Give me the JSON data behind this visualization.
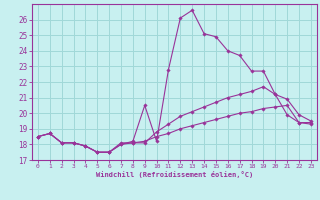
{
  "bg_color": "#c8f0f0",
  "grid_color": "#a0d8d8",
  "line_color": "#993399",
  "marker_color": "#993399",
  "xlabel": "Windchill (Refroidissement éolien,°C)",
  "xlabel_color": "#993399",
  "tick_color": "#993399",
  "xlim": [
    -0.5,
    23.5
  ],
  "ylim": [
    17,
    27
  ],
  "yticks": [
    17,
    18,
    19,
    20,
    21,
    22,
    23,
    24,
    25,
    26
  ],
  "xticks": [
    0,
    1,
    2,
    3,
    4,
    5,
    6,
    7,
    8,
    9,
    10,
    11,
    12,
    13,
    14,
    15,
    16,
    17,
    18,
    19,
    20,
    21,
    22,
    23
  ],
  "series": [
    {
      "x": [
        0,
        1,
        2,
        3,
        4,
        5,
        6,
        7,
        8,
        9,
        10,
        11,
        12,
        13,
        14,
        15,
        16,
        17,
        18,
        19,
        20,
        21,
        22,
        23
      ],
      "y": [
        18.5,
        18.7,
        18.1,
        18.1,
        17.9,
        17.5,
        17.5,
        18.0,
        18.2,
        20.5,
        18.2,
        22.8,
        26.1,
        26.6,
        25.1,
        24.9,
        24.0,
        23.7,
        22.7,
        22.7,
        21.2,
        19.9,
        19.4,
        19.4
      ]
    },
    {
      "x": [
        0,
        1,
        2,
        3,
        4,
        5,
        6,
        7,
        8,
        9,
        10,
        11,
        12,
        13,
        14,
        15,
        16,
        17,
        18,
        19,
        20,
        21,
        22,
        23
      ],
      "y": [
        18.5,
        18.7,
        18.1,
        18.1,
        17.9,
        17.5,
        17.5,
        18.1,
        18.1,
        18.1,
        18.8,
        19.3,
        19.8,
        20.1,
        20.4,
        20.7,
        21.0,
        21.2,
        21.4,
        21.7,
        21.2,
        20.9,
        19.9,
        19.5
      ]
    },
    {
      "x": [
        0,
        1,
        2,
        3,
        4,
        5,
        6,
        7,
        8,
        9,
        10,
        11,
        12,
        13,
        14,
        15,
        16,
        17,
        18,
        19,
        20,
        21,
        22,
        23
      ],
      "y": [
        18.5,
        18.7,
        18.1,
        18.1,
        17.9,
        17.5,
        17.5,
        18.0,
        18.1,
        18.2,
        18.5,
        18.7,
        19.0,
        19.2,
        19.4,
        19.6,
        19.8,
        20.0,
        20.1,
        20.3,
        20.4,
        20.5,
        19.4,
        19.3
      ]
    }
  ]
}
